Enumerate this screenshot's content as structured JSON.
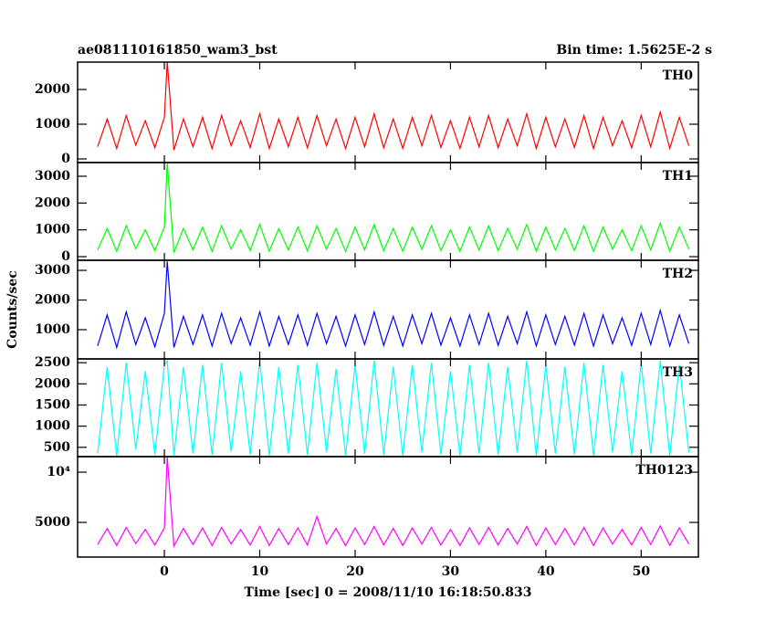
{
  "title": "ae081110161850_wam3_bst",
  "subtitle": "Bin time: 1.5625E-2 s",
  "ylabel": "Counts/sec",
  "xlabel": "Time [sec] 0 = 2008/11/10 16:18:50.833",
  "xlim": [
    -9.1,
    56.0
  ],
  "xticks": [
    0,
    10,
    20,
    30,
    40,
    50
  ],
  "x": [
    -7,
    -6,
    -5,
    -4,
    -3,
    -2,
    -1,
    0,
    0.3,
    1,
    2,
    3,
    4,
    5,
    6,
    7,
    8,
    9,
    10,
    11,
    12,
    13,
    14,
    15,
    16,
    17,
    18,
    19,
    20,
    21,
    22,
    23,
    24,
    25,
    26,
    27,
    28,
    29,
    30,
    31,
    32,
    33,
    34,
    35,
    36,
    37,
    38,
    39,
    40,
    41,
    42,
    43,
    44,
    45,
    46,
    47,
    48,
    49,
    50,
    51,
    52,
    53,
    54,
    55
  ],
  "chart_data": [
    {
      "type": "line",
      "title": "TH0",
      "color": "#ff0000",
      "ylim": [
        -105,
        2790
      ],
      "yticks": [
        0,
        1000,
        2000
      ],
      "values": [
        350,
        1150,
        300,
        1250,
        400,
        1100,
        320,
        1200,
        2800,
        250,
        1150,
        350,
        1200,
        300,
        1250,
        380,
        1100,
        330,
        1300,
        300,
        1150,
        350,
        1200,
        320,
        1250,
        380,
        1150,
        300,
        1200,
        350,
        1300,
        320,
        1150,
        300,
        1200,
        380,
        1250,
        330,
        1100,
        300,
        1200,
        350,
        1250,
        320,
        1150,
        380,
        1300,
        300,
        1200,
        350,
        1150,
        330,
        1250,
        300,
        1200,
        380,
        1100,
        320,
        1250,
        350,
        1350,
        300,
        1200,
        380
      ]
    },
    {
      "type": "line",
      "title": "TH1",
      "color": "#00ff00",
      "ylim": [
        -135,
        3510
      ],
      "yticks": [
        0,
        1000,
        2000,
        3000
      ],
      "values": [
        250,
        1050,
        200,
        1150,
        300,
        1000,
        220,
        1100,
        3500,
        150,
        1050,
        250,
        1100,
        200,
        1150,
        280,
        1000,
        230,
        1200,
        200,
        1050,
        250,
        1100,
        220,
        1150,
        280,
        1050,
        200,
        1100,
        250,
        1200,
        220,
        1050,
        200,
        1100,
        280,
        1150,
        230,
        1000,
        200,
        1100,
        250,
        1150,
        220,
        1050,
        280,
        1200,
        200,
        1100,
        250,
        1050,
        230,
        1150,
        200,
        1100,
        280,
        1000,
        220,
        1150,
        250,
        1250,
        200,
        1100,
        280
      ]
    },
    {
      "type": "line",
      "title": "TH2",
      "color": "#0000ff",
      "ylim": [
        15,
        3340
      ],
      "yticks": [
        1000,
        2000,
        3000
      ],
      "values": [
        450,
        1500,
        400,
        1600,
        500,
        1400,
        420,
        1550,
        3300,
        400,
        1450,
        500,
        1500,
        450,
        1550,
        530,
        1400,
        480,
        1600,
        450,
        1450,
        500,
        1500,
        470,
        1550,
        530,
        1450,
        450,
        1500,
        500,
        1600,
        470,
        1450,
        450,
        1500,
        530,
        1550,
        480,
        1400,
        450,
        1500,
        500,
        1550,
        470,
        1450,
        530,
        1600,
        450,
        1500,
        500,
        1450,
        480,
        1550,
        450,
        1500,
        530,
        1400,
        470,
        1550,
        500,
        1650,
        450,
        1500,
        530
      ]
    },
    {
      "type": "line",
      "title": "TH3",
      "color": "#00ffff",
      "ylim": [
        280,
        2590
      ],
      "yticks": [
        500,
        1000,
        1500,
        2000,
        2500
      ],
      "values": [
        350,
        2400,
        300,
        2500,
        450,
        2300,
        320,
        2450,
        2550,
        300,
        2400,
        350,
        2450,
        320,
        2500,
        400,
        2300,
        330,
        2550,
        300,
        2400,
        350,
        2450,
        320,
        2500,
        380,
        2350,
        300,
        2450,
        350,
        2550,
        320,
        2400,
        300,
        2450,
        380,
        2500,
        330,
        2300,
        300,
        2450,
        350,
        2500,
        320,
        2400,
        380,
        2550,
        300,
        2450,
        350,
        2400,
        330,
        2500,
        300,
        2450,
        380,
        2300,
        320,
        2500,
        350,
        2550,
        300,
        2450,
        380
      ]
    },
    {
      "type": "line",
      "title": "TH0123",
      "color": "#ff00ff",
      "ylim": [
        1550,
        11550
      ],
      "yticks": [
        5000,
        {
          "value": 10000,
          "label": "10⁴"
        }
      ],
      "values": [
        2800,
        4400,
        2700,
        4500,
        2900,
        4300,
        2750,
        4450,
        11500,
        2650,
        4400,
        2800,
        4450,
        2700,
        4500,
        2850,
        4300,
        2750,
        4600,
        2700,
        4400,
        2800,
        4450,
        2750,
        5600,
        2850,
        4400,
        2700,
        4450,
        2800,
        4600,
        2750,
        4400,
        2700,
        4450,
        2850,
        4500,
        2750,
        4300,
        2700,
        4450,
        2800,
        4500,
        2750,
        4400,
        2850,
        4600,
        2700,
        4450,
        2800,
        4400,
        2750,
        4500,
        2700,
        4450,
        2850,
        4300,
        2750,
        4500,
        2800,
        4650,
        2700,
        4450,
        2850
      ]
    }
  ]
}
